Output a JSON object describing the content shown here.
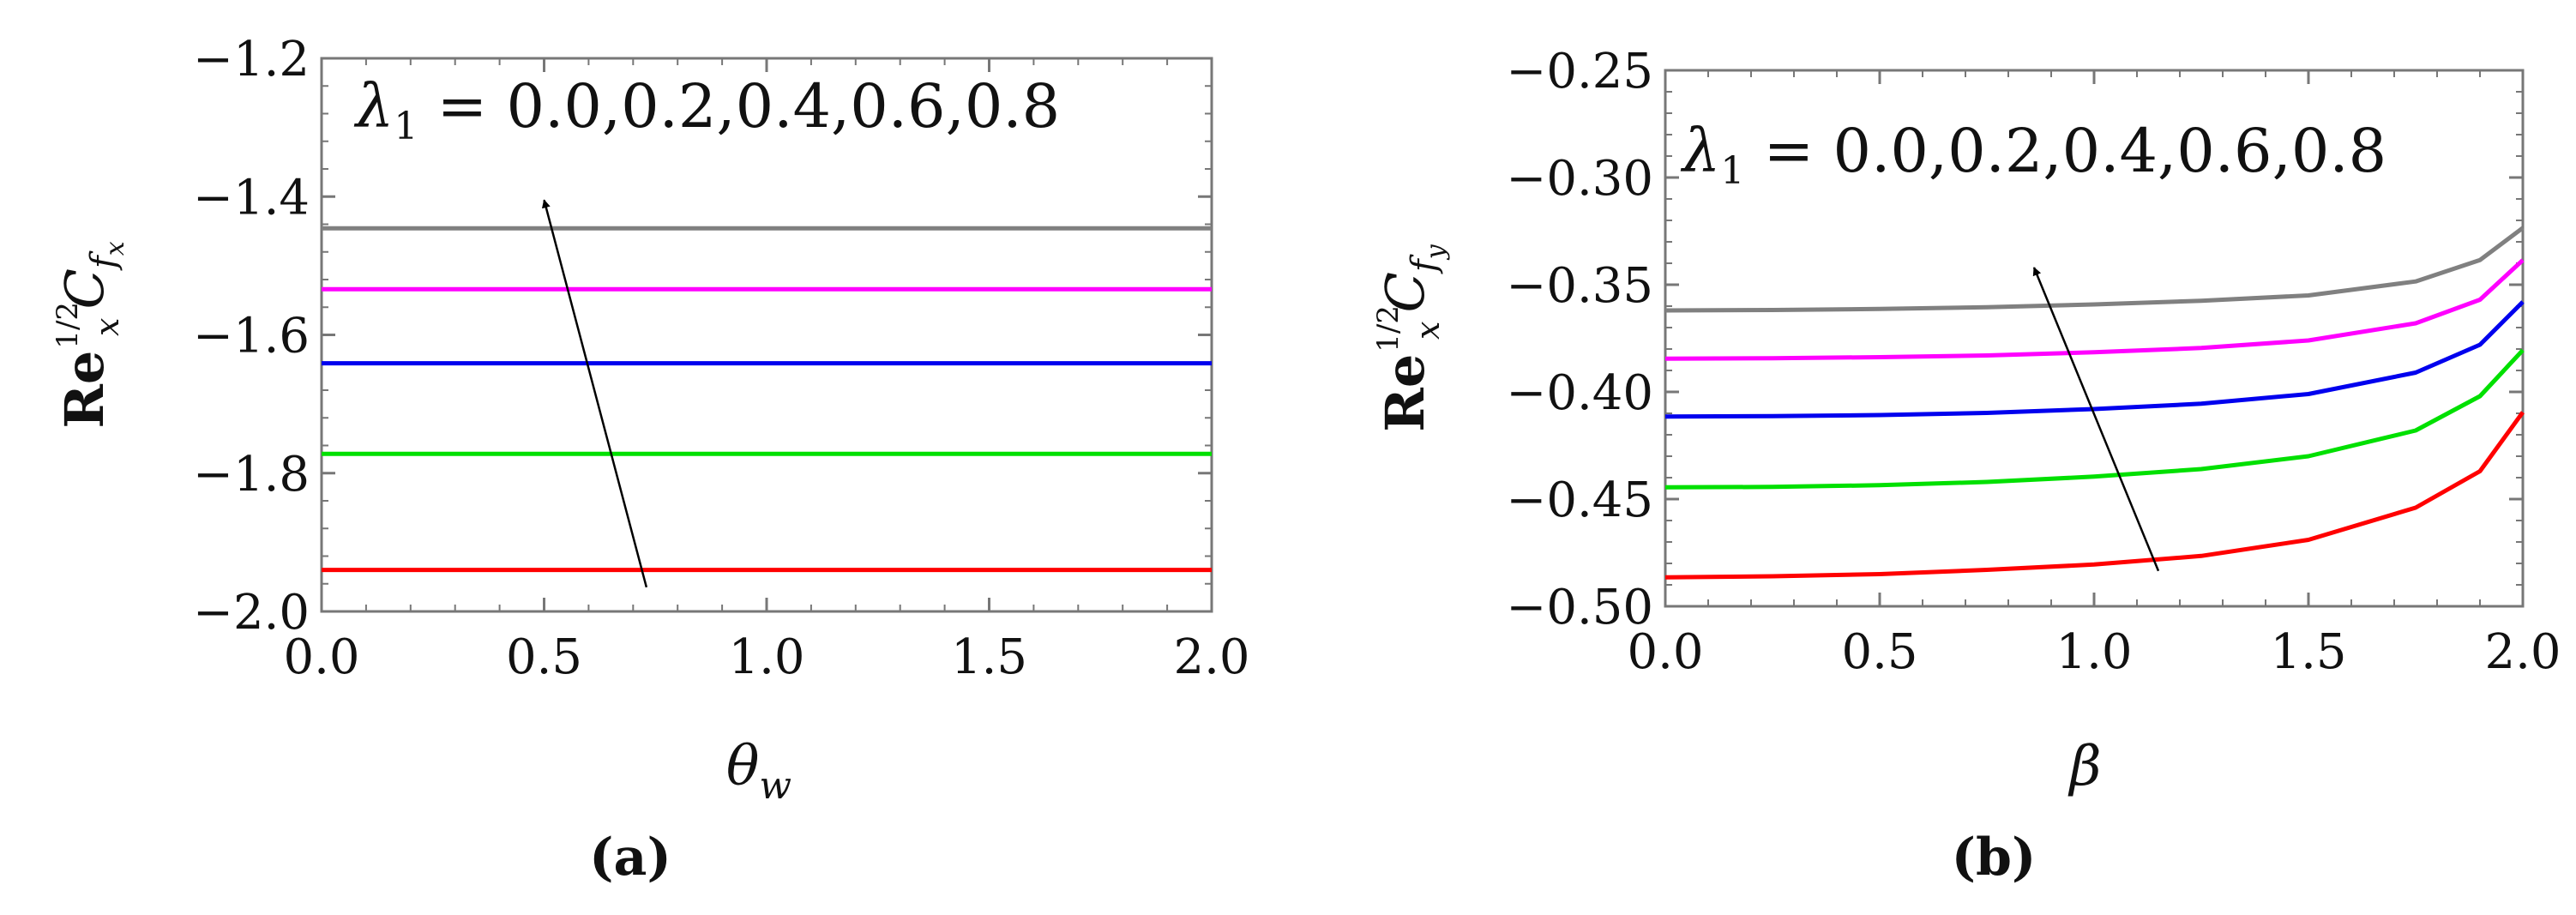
{
  "chart_data": [
    {
      "type": "line",
      "panel_label": "(a)",
      "xlabel": "θ",
      "xlabel_sub": "w",
      "ylabel": {
        "base": "Re",
        "sub": "x",
        "sup": "1/2",
        "symbol": "C",
        "symbol_sub": "f",
        "symbol_subsub": "x"
      },
      "annotation": {
        "lhs": "λ",
        "lhs_sub": "1",
        "rhs": " = 0.0,0.2,0.4,0.6,0.8"
      },
      "arrow": {
        "from": [
          0.73,
          -1.965
        ],
        "to": [
          0.5,
          -1.405
        ]
      },
      "xlim": [
        0.0,
        2.0
      ],
      "ylim": [
        -2.0,
        -1.2
      ],
      "xticks": [
        "0.0",
        "0.5",
        "1.0",
        "1.5",
        "2.0"
      ],
      "yticks": [
        "-2.0",
        "-1.8",
        "-1.6",
        "-1.4",
        "-1.2"
      ],
      "series": [
        {
          "color": "#ff0000",
          "x": [
            0.0,
            2.0
          ],
          "y": [
            -1.94,
            -1.94
          ]
        },
        {
          "color": "#00e000",
          "x": [
            0.0,
            2.0
          ],
          "y": [
            -1.772,
            -1.772
          ]
        },
        {
          "color": "#0000ee",
          "x": [
            0.0,
            2.0
          ],
          "y": [
            -1.641,
            -1.641
          ]
        },
        {
          "color": "#ff00ff",
          "x": [
            0.0,
            2.0
          ],
          "y": [
            -1.534,
            -1.534
          ]
        },
        {
          "color": "#808080",
          "x": [
            0.0,
            2.0
          ],
          "y": [
            -1.446,
            -1.446
          ]
        }
      ]
    },
    {
      "type": "line",
      "panel_label": "(b)",
      "xlabel": "β",
      "xlabel_sub": "",
      "ylabel": {
        "base": "Re",
        "sub": "x",
        "sup": "1/2",
        "symbol": "C",
        "symbol_sub": "f",
        "symbol_subsub": "y"
      },
      "annotation": {
        "lhs": "λ",
        "lhs_sub": "1",
        "rhs": " = 0.0,0.2,0.4,0.6,0.8"
      },
      "arrow": {
        "from": [
          1.15,
          -0.4835
        ],
        "to": [
          0.86,
          -0.342
        ]
      },
      "xlim": [
        0.0,
        2.0
      ],
      "ylim": [
        -0.5,
        -0.25
      ],
      "xticks": [
        "0.0",
        "0.5",
        "1.0",
        "1.5",
        "2.0"
      ],
      "yticks": [
        "-0.50",
        "-0.45",
        "-0.40",
        "-0.35",
        "-0.30",
        "-0.25"
      ],
      "series": [
        {
          "color": "#ff0000",
          "x": [
            0.0,
            0.25,
            0.5,
            0.75,
            1.0,
            1.25,
            1.5,
            1.75,
            1.9,
            2.0
          ],
          "y": [
            -0.4865,
            -0.486,
            -0.485,
            -0.483,
            -0.4805,
            -0.4765,
            -0.469,
            -0.454,
            -0.437,
            -0.4095
          ]
        },
        {
          "color": "#00e000",
          "x": [
            0.0,
            0.25,
            0.5,
            0.75,
            1.0,
            1.25,
            1.5,
            1.75,
            1.9,
            2.0
          ],
          "y": [
            -0.4445,
            -0.4443,
            -0.4435,
            -0.442,
            -0.4395,
            -0.436,
            -0.43,
            -0.418,
            -0.402,
            -0.3805
          ]
        },
        {
          "color": "#0000ee",
          "x": [
            0.0,
            0.25,
            0.5,
            0.75,
            1.0,
            1.25,
            1.5,
            1.75,
            1.9,
            2.0
          ],
          "y": [
            -0.4115,
            -0.4113,
            -0.4108,
            -0.4098,
            -0.408,
            -0.4055,
            -0.401,
            -0.391,
            -0.378,
            -0.358
          ]
        },
        {
          "color": "#ff00ff",
          "x": [
            0.0,
            0.25,
            0.5,
            0.75,
            1.0,
            1.25,
            1.5,
            1.75,
            1.9,
            2.0
          ],
          "y": [
            -0.3845,
            -0.3843,
            -0.3838,
            -0.383,
            -0.3815,
            -0.3795,
            -0.376,
            -0.368,
            -0.357,
            -0.3385
          ]
        },
        {
          "color": "#808080",
          "x": [
            0.0,
            0.25,
            0.5,
            0.75,
            1.0,
            1.25,
            1.5,
            1.75,
            1.9,
            2.0
          ],
          "y": [
            -0.362,
            -0.3618,
            -0.3613,
            -0.3605,
            -0.3592,
            -0.3575,
            -0.355,
            -0.3485,
            -0.3385,
            -0.3235
          ]
        }
      ]
    }
  ]
}
